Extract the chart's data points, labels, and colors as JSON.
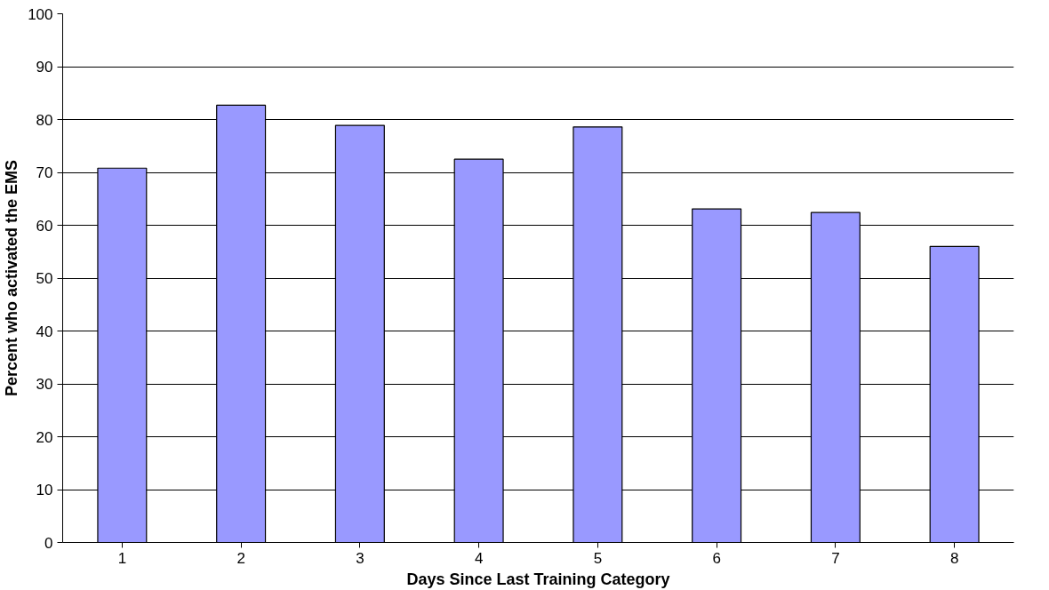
{
  "chart_data": {
    "type": "bar",
    "xlabel": "Days Since Last Training Category",
    "ylabel": "Percent who activated the EMS",
    "categories": [
      "1",
      "2",
      "3",
      "4",
      "5",
      "6",
      "7",
      "8"
    ],
    "values": [
      70.8,
      82.7,
      78.9,
      72.5,
      78.6,
      63.1,
      62.4,
      56.0
    ],
    "color": "#9999ff",
    "ylim": [
      0,
      100
    ],
    "yticks": [
      0,
      10,
      20,
      30,
      40,
      50,
      60,
      70,
      80,
      90,
      100
    ],
    "grid": "y"
  }
}
